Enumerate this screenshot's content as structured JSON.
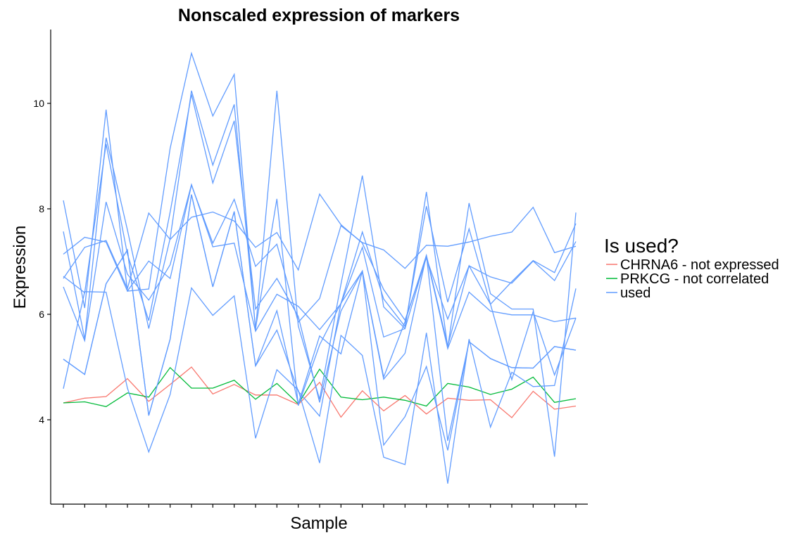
{
  "chart_data": {
    "type": "line",
    "title": "Nonscaled expression of markers",
    "xlabel": "Sample",
    "ylabel": "Expression",
    "x_count": 25,
    "ylim": [
      2.4,
      11.4
    ],
    "yticks": [
      4,
      6,
      8,
      10
    ],
    "grid": false,
    "legend": {
      "title": "Is used?",
      "placement": "right",
      "entries": [
        {
          "label": "CHRNA6 - not expressed",
          "color": "#F8766D"
        },
        {
          "label": "PRKCG - not correlated",
          "color": "#00BA38"
        },
        {
          "label": "used",
          "color": "#619CFF"
        }
      ]
    },
    "series": [
      {
        "group": "CHRNA6 - not expressed",
        "color": "#F8766D",
        "values": [
          4.32,
          4.41,
          4.44,
          4.78,
          4.35,
          4.67,
          5.0,
          4.49,
          4.67,
          4.47,
          4.47,
          4.29,
          4.71,
          4.05,
          4.55,
          4.17,
          4.46,
          4.11,
          4.41,
          4.37,
          4.38,
          4.04,
          4.54,
          4.2,
          4.26
        ]
      },
      {
        "group": "PRKCG - not correlated",
        "color": "#00BA38",
        "values": [
          4.32,
          4.34,
          4.25,
          4.51,
          4.43,
          4.99,
          4.6,
          4.6,
          4.75,
          4.39,
          4.69,
          4.3,
          4.96,
          4.43,
          4.38,
          4.43,
          4.37,
          4.26,
          4.69,
          4.62,
          4.48,
          4.58,
          4.81,
          4.33,
          4.4
        ]
      },
      {
        "group": "used",
        "color": "#619CFF",
        "values": [
          8.16,
          6.12,
          9.88,
          6.44,
          6.48,
          9.15,
          10.95,
          9.76,
          10.55,
          5.7,
          10.24,
          5.78,
          4.39,
          6.57,
          8.63,
          6.14,
          5.73,
          8.32,
          5.37,
          8.11,
          6.39,
          6.1,
          6.1,
          3.3,
          7.93
        ]
      },
      {
        "group": "used",
        "color": "#619CFF",
        "values": [
          7.57,
          5.53,
          9.35,
          7.6,
          5.73,
          7.44,
          10.24,
          8.83,
          9.98,
          5.73,
          8.19,
          4.27,
          5.42,
          6.21,
          7.56,
          6.29,
          5.77,
          8.05,
          6.23,
          7.62,
          6.19,
          4.76,
          6.05,
          4.85,
          5.93
        ]
      },
      {
        "group": "used",
        "color": "#619CFF",
        "values": [
          6.72,
          6.41,
          9.23,
          7.14,
          5.88,
          7.94,
          10.17,
          8.49,
          9.67,
          6.1,
          6.68,
          5.96,
          4.33,
          6.06,
          6.82,
          4.81,
          5.86,
          7.12,
          5.4,
          6.92,
          6.19,
          6.62,
          7.02,
          6.79,
          7.72
        ]
      },
      {
        "group": "used",
        "color": "#619CFF",
        "values": [
          7.14,
          7.46,
          7.37,
          6.44,
          7.01,
          6.68,
          8.45,
          7.35,
          8.18,
          6.91,
          7.33,
          5.85,
          6.3,
          7.68,
          7.36,
          7.22,
          6.87,
          7.31,
          7.29,
          7.37,
          7.48,
          7.56,
          8.03,
          7.17,
          7.29
        ]
      },
      {
        "group": "used",
        "color": "#619CFF",
        "values": [
          6.68,
          7.27,
          7.4,
          6.49,
          7.92,
          7.42,
          7.84,
          7.94,
          7.77,
          7.27,
          7.55,
          6.84,
          8.28,
          7.7,
          7.35,
          6.47,
          5.89,
          7.07,
          5.91,
          6.92,
          6.71,
          6.59,
          7.01,
          6.64,
          7.38
        ]
      },
      {
        "group": "used",
        "color": "#619CFF",
        "values": [
          6.52,
          5.5,
          8.13,
          6.76,
          6.27,
          6.94,
          8.46,
          7.28,
          7.35,
          5.68,
          6.38,
          6.15,
          5.71,
          6.2,
          7.27,
          5.57,
          5.73,
          7.1,
          5.35,
          6.42,
          6.06,
          5.99,
          5.99,
          5.86,
          5.93
        ]
      },
      {
        "group": "used",
        "color": "#619CFF",
        "values": [
          5.15,
          4.86,
          6.58,
          7.22,
          4.08,
          5.53,
          8.27,
          6.52,
          7.95,
          5.02,
          6.07,
          4.3,
          5.59,
          5.25,
          6.82,
          4.77,
          5.26,
          7.12,
          3.6,
          5.48,
          5.16,
          4.99,
          4.98,
          5.39,
          5.32
        ]
      },
      {
        "group": "used",
        "color": "#619CFF",
        "values": [
          4.59,
          6.43,
          6.42,
          4.6,
          3.39,
          4.48,
          6.5,
          5.98,
          6.35,
          3.65,
          4.95,
          4.56,
          3.18,
          5.6,
          5.22,
          3.29,
          3.15,
          5.65,
          2.79,
          5.53,
          3.86,
          4.9,
          4.63,
          4.65,
          6.49
        ]
      },
      {
        "group": "used",
        "color": "#619CFF",
        "values": [
          5.15,
          4.86,
          6.58,
          7.22,
          4.08,
          5.53,
          8.27,
          6.52,
          7.95,
          5.02,
          5.7,
          4.54,
          4.07,
          6.21,
          6.82,
          3.52,
          4.06,
          5.01,
          3.42,
          5.48,
          5.16,
          4.99,
          4.98,
          5.39,
          5.32
        ]
      }
    ]
  }
}
